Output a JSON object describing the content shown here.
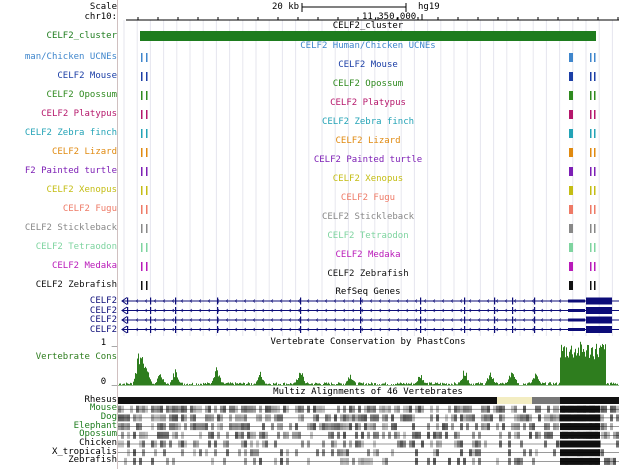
{
  "ruler": {
    "scale_label": "Scale",
    "chrom_label": "chr10:",
    "scale_bar": "20 kb",
    "assembly": "hg19",
    "position": "11,350,000"
  },
  "cluster": {
    "label": "CELF2_cluster",
    "title": "CELF2_cluster",
    "color": "#1e7c1e"
  },
  "ucne_tracks": [
    {
      "label": "man/Chicken UCNEs",
      "title": "CELF2 Human/Chicken UCNEs",
      "color": "#3f86cc"
    },
    {
      "label": "CELF2 Mouse",
      "title": "CELF2 Mouse",
      "color": "#1b3ea6"
    },
    {
      "label": "CELF2 Opossum",
      "title": "CELF2 Opossum",
      "color": "#2f8a1f"
    },
    {
      "label": "CELF2 Platypus",
      "title": "CELF2 Platypus",
      "color": "#b5176b"
    },
    {
      "label": "CELF2 Zebra finch",
      "title": "CELF2 Zebra finch",
      "color": "#23a3b6"
    },
    {
      "label": "CELF2 Lizard",
      "title": "CELF2 Lizard",
      "color": "#e08a10"
    },
    {
      "label": "F2 Painted turtle",
      "title": "CELF2 Painted turtle",
      "color": "#7d1fb5"
    },
    {
      "label": "CELF2 Xenopus",
      "title": "CELF2 Xenopus",
      "color": "#c4bd14"
    },
    {
      "label": "CELF2 Fugu",
      "title": "CELF2 Fugu",
      "color": "#ee7a66"
    },
    {
      "label": "CELF2 Stickleback",
      "title": "CELF2 Stickleback",
      "color": "#888888"
    },
    {
      "label": "CELF2 Tetraodon",
      "title": "CELF2 Tetraodon",
      "color": "#7fd4a0"
    },
    {
      "label": "CELF2 Medaka",
      "title": "CELF2 Medaka",
      "color": "#b91ab9"
    },
    {
      "label": "CELF2 Zebrafish",
      "title": "CELF2 Zebrafish",
      "color": "#111111"
    }
  ],
  "refseq": {
    "title": "RefSeq Genes",
    "genes": [
      "CELF2",
      "CELF2",
      "CELF2",
      "CELF2"
    ],
    "color": "#0c0c78"
  },
  "conservation": {
    "title": "Vertebrate Conservation by PhastCons",
    "label": "Vertebrate Cons",
    "max_label": "1 _",
    "min_label": "0 _",
    "color": "#2e7d1e"
  },
  "multiz": {
    "title": "Multiz Alignments of 46 Vertebrates",
    "species": [
      {
        "name": "Rhesus",
        "color": "#000000"
      },
      {
        "name": "Mouse",
        "color": "#1e7c1e"
      },
      {
        "name": "Dog",
        "color": "#1e7c1e"
      },
      {
        "name": "Elephant",
        "color": "#1e7c1e"
      },
      {
        "name": "Opossum",
        "color": "#1e7c1e"
      },
      {
        "name": "Chicken",
        "color": "#000000"
      },
      {
        "name": "X_tropicalis",
        "color": "#000000"
      },
      {
        "name": "Zebrafish",
        "color": "#000000"
      }
    ]
  }
}
